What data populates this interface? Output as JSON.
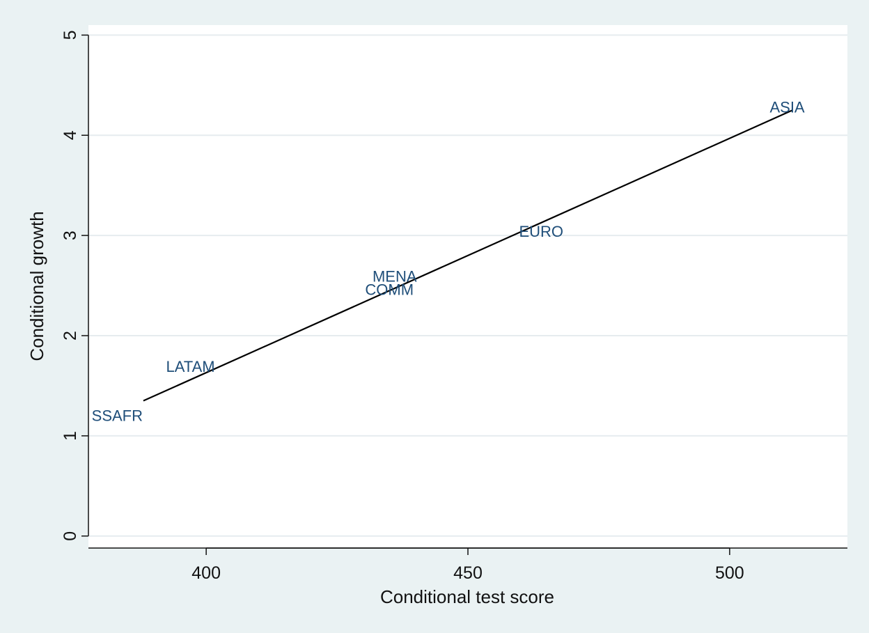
{
  "chart_data": {
    "type": "scatter",
    "title": "",
    "xlabel": "Conditional test score",
    "ylabel": "Conditional growth",
    "xlim": [
      377.5,
      522.5
    ],
    "ylim": [
      -0.12,
      5.1
    ],
    "xticks": [
      400,
      450,
      500
    ],
    "yticks": [
      0,
      1,
      2,
      3,
      4,
      5
    ],
    "grid": true,
    "legend": "none",
    "colors": {
      "label": "#1f4e79",
      "fit_line": "#000000",
      "grid": "#e6ecef",
      "background": "#eaf2f3",
      "plot_area": "#ffffff"
    },
    "points": [
      {
        "label": "SSAFR",
        "x": 383,
        "y": 1.2
      },
      {
        "label": "LATAM",
        "x": 397,
        "y": 1.69
      },
      {
        "label": "MENA",
        "x": 436,
        "y": 2.59
      },
      {
        "label": "COMM",
        "x": 435,
        "y": 2.46
      },
      {
        "label": "EURO",
        "x": 464,
        "y": 3.04
      },
      {
        "label": "ASIA",
        "x": 511,
        "y": 4.28
      }
    ],
    "fit_line": {
      "x": [
        388,
        512
      ],
      "y": [
        1.35,
        4.25
      ]
    }
  }
}
